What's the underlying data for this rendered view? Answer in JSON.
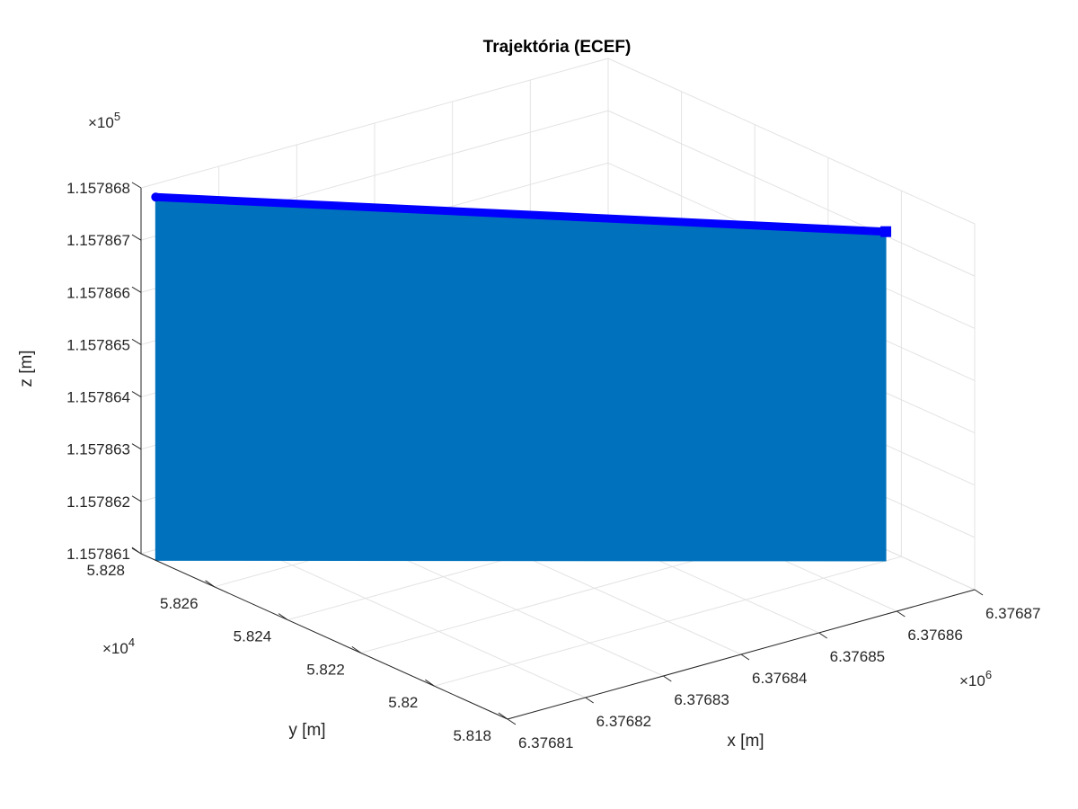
{
  "chart_data": {
    "type": "line",
    "title": "Trajektória (ECEF)",
    "xlabel": "x [m]",
    "ylabel": "y [m]",
    "zlabel": "z [m]",
    "x_ticks": [
      "6.37681",
      "6.37682",
      "6.37683",
      "6.37684",
      "6.37685",
      "6.37686",
      "6.37687"
    ],
    "y_ticks": [
      "5.818",
      "5.82",
      "5.822",
      "5.824",
      "5.826",
      "5.828"
    ],
    "z_ticks": [
      "1.157861",
      "1.157862",
      "1.157863",
      "1.157864",
      "1.157865",
      "1.157866",
      "1.157867",
      "1.157868"
    ],
    "x_exponent": "×10",
    "x_exponent_power": "6",
    "y_exponent": "×10",
    "y_exponent_power": "4",
    "z_exponent": "×10",
    "z_exponent_power": "5",
    "xlim": [
      6376810,
      6376870
    ],
    "ylim": [
      58180,
      58280
    ],
    "zlim": [
      115786.1,
      115786.8
    ],
    "grid": true,
    "series": [
      {
        "color": "#0000ff",
        "x": [
          6376810,
          6376868
        ],
        "y": [
          58276,
          58200
        ],
        "z": [
          115786.795,
          115786.73
        ]
      }
    ],
    "stem_color": "#0072bd"
  }
}
